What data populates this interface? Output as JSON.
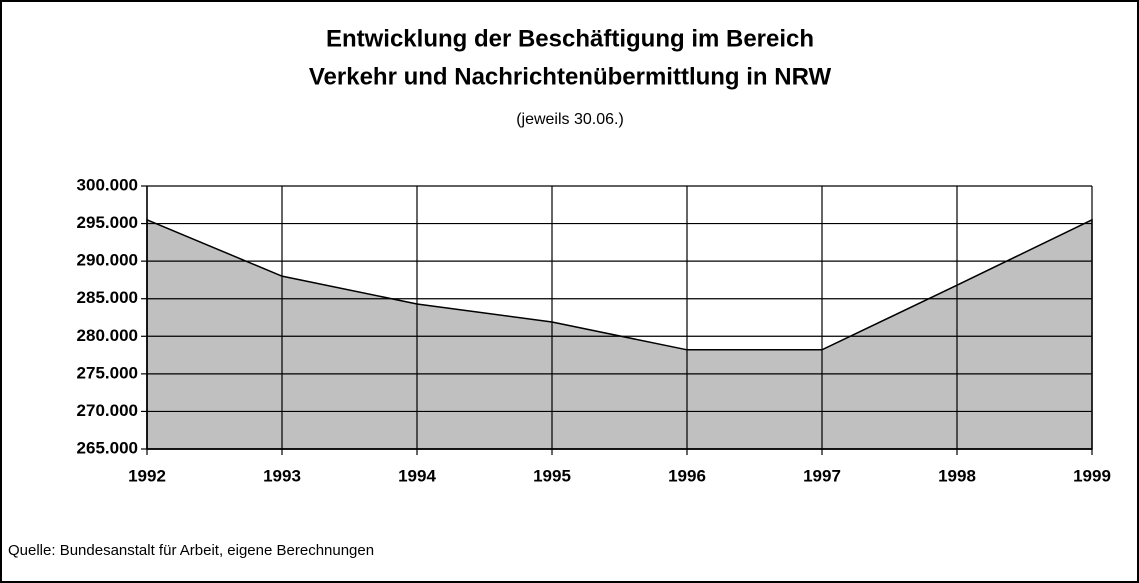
{
  "chart_data": {
    "type": "area",
    "title": [
      "Entwicklung der Beschäftigung im Bereich",
      "Verkehr und Nachrichtenübermittlung in NRW"
    ],
    "subtitle": "(jeweils 30.06.)",
    "source": "Quelle: Bundesanstalt für Arbeit, eigene Berechnungen",
    "categories": [
      "1992",
      "1993",
      "1994",
      "1995",
      "1996",
      "1997",
      "1998",
      "1999"
    ],
    "values": [
      295500,
      288000,
      284300,
      281900,
      278200,
      278200,
      286800,
      295500
    ],
    "color": "#c0c0c0",
    "ylim": [
      265000,
      300000
    ],
    "yticks": [
      {
        "value": 265000,
        "label": "265.000"
      },
      {
        "value": 270000,
        "label": "270.000"
      },
      {
        "value": 275000,
        "label": "275.000"
      },
      {
        "value": 280000,
        "label": "280.000"
      },
      {
        "value": 285000,
        "label": "285.000"
      },
      {
        "value": 290000,
        "label": "290.000"
      },
      {
        "value": 295000,
        "label": "295.000"
      },
      {
        "value": 300000,
        "label": "300.000"
      }
    ],
    "grid": true
  }
}
